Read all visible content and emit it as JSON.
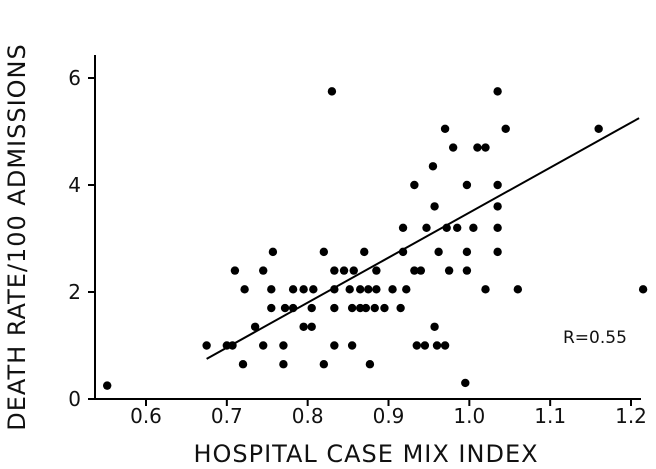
{
  "chart_data": {
    "type": "scatter",
    "title": "",
    "xlabel": "HOSPITAL CASE MIX INDEX",
    "ylabel": "DEATH RATE/100 ADMISSIONS",
    "xlim": [
      0.55,
      1.22
    ],
    "ylim": [
      0,
      6.2
    ],
    "xticks": [
      0.6,
      0.7,
      0.8,
      0.9,
      1.0,
      1.1,
      1.2
    ],
    "xtick_labels": [
      "0.6",
      "0.7",
      "0.8",
      "0.9",
      "1.0",
      "1.1",
      "1.2"
    ],
    "yticks": [
      0,
      2,
      4,
      6
    ],
    "ytick_labels": [
      "0",
      "2",
      "4",
      "6"
    ],
    "grid": false,
    "annotation": "R=0.55",
    "regression_line": {
      "x": [
        0.675,
        1.21
      ],
      "y": [
        0.75,
        5.25
      ]
    },
    "points": [
      [
        0.552,
        0.25
      ],
      [
        0.675,
        1.0
      ],
      [
        0.7,
        1.0
      ],
      [
        0.707,
        1.0
      ],
      [
        0.71,
        2.4
      ],
      [
        0.72,
        0.65
      ],
      [
        0.722,
        2.05
      ],
      [
        0.735,
        1.35
      ],
      [
        0.745,
        1.0
      ],
      [
        0.745,
        2.4
      ],
      [
        0.755,
        1.7
      ],
      [
        0.755,
        2.05
      ],
      [
        0.757,
        2.75
      ],
      [
        0.77,
        0.65
      ],
      [
        0.77,
        1.0
      ],
      [
        0.772,
        1.7
      ],
      [
        0.782,
        1.7
      ],
      [
        0.782,
        2.05
      ],
      [
        0.795,
        1.35
      ],
      [
        0.795,
        2.05
      ],
      [
        0.805,
        1.35
      ],
      [
        0.805,
        1.7
      ],
      [
        0.807,
        2.05
      ],
      [
        0.82,
        0.65
      ],
      [
        0.82,
        2.75
      ],
      [
        0.83,
        5.75
      ],
      [
        0.833,
        1.0
      ],
      [
        0.833,
        1.7
      ],
      [
        0.833,
        2.05
      ],
      [
        0.833,
        2.4
      ],
      [
        0.845,
        2.4
      ],
      [
        0.852,
        2.05
      ],
      [
        0.855,
        1.7
      ],
      [
        0.855,
        1.0
      ],
      [
        0.857,
        2.4
      ],
      [
        0.865,
        1.7
      ],
      [
        0.865,
        2.05
      ],
      [
        0.87,
        2.75
      ],
      [
        0.872,
        1.7
      ],
      [
        0.875,
        2.05
      ],
      [
        0.877,
        0.65
      ],
      [
        0.883,
        1.7
      ],
      [
        0.885,
        2.05
      ],
      [
        0.885,
        2.4
      ],
      [
        0.895,
        1.7
      ],
      [
        0.905,
        2.05
      ],
      [
        0.915,
        1.7
      ],
      [
        0.918,
        2.75
      ],
      [
        0.918,
        3.2
      ],
      [
        0.922,
        2.05
      ],
      [
        0.932,
        4.0
      ],
      [
        0.932,
        2.4
      ],
      [
        0.935,
        1.0
      ],
      [
        0.94,
        2.4
      ],
      [
        0.945,
        1.0
      ],
      [
        0.947,
        3.2
      ],
      [
        0.955,
        4.35
      ],
      [
        0.957,
        1.35
      ],
      [
        0.957,
        3.6
      ],
      [
        0.96,
        1.0
      ],
      [
        0.962,
        2.75
      ],
      [
        0.97,
        5.05
      ],
      [
        0.97,
        1.0
      ],
      [
        0.972,
        3.2
      ],
      [
        0.975,
        2.4
      ],
      [
        0.98,
        4.7
      ],
      [
        0.985,
        3.2
      ],
      [
        0.995,
        0.3
      ],
      [
        0.997,
        2.4
      ],
      [
        0.997,
        2.75
      ],
      [
        0.997,
        4.0
      ],
      [
        1.005,
        3.2
      ],
      [
        1.01,
        4.7
      ],
      [
        1.02,
        4.7
      ],
      [
        1.02,
        2.05
      ],
      [
        1.035,
        5.75
      ],
      [
        1.035,
        4.0
      ],
      [
        1.035,
        3.6
      ],
      [
        1.035,
        3.2
      ],
      [
        1.035,
        2.75
      ],
      [
        1.045,
        5.05
      ],
      [
        1.06,
        2.05
      ],
      [
        1.16,
        5.05
      ],
      [
        1.215,
        2.05
      ]
    ]
  }
}
